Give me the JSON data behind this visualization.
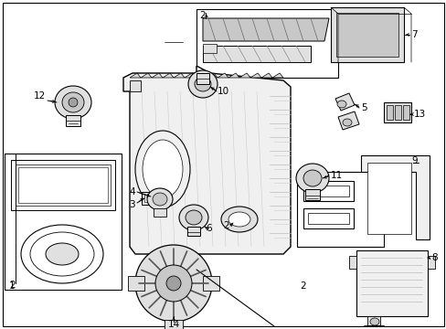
{
  "bg_color": "#ffffff",
  "border_color": "#000000",
  "line_color": "#000000",
  "gray1": "#c8c8c8",
  "gray2": "#e0e0e0",
  "gray3": "#a0a0a0",
  "gray4": "#f0f0f0",
  "lw_main": 1.0,
  "lw_thin": 0.5,
  "lw_med": 0.7,
  "figw": 4.89,
  "figh": 3.6,
  "dpi": 100
}
